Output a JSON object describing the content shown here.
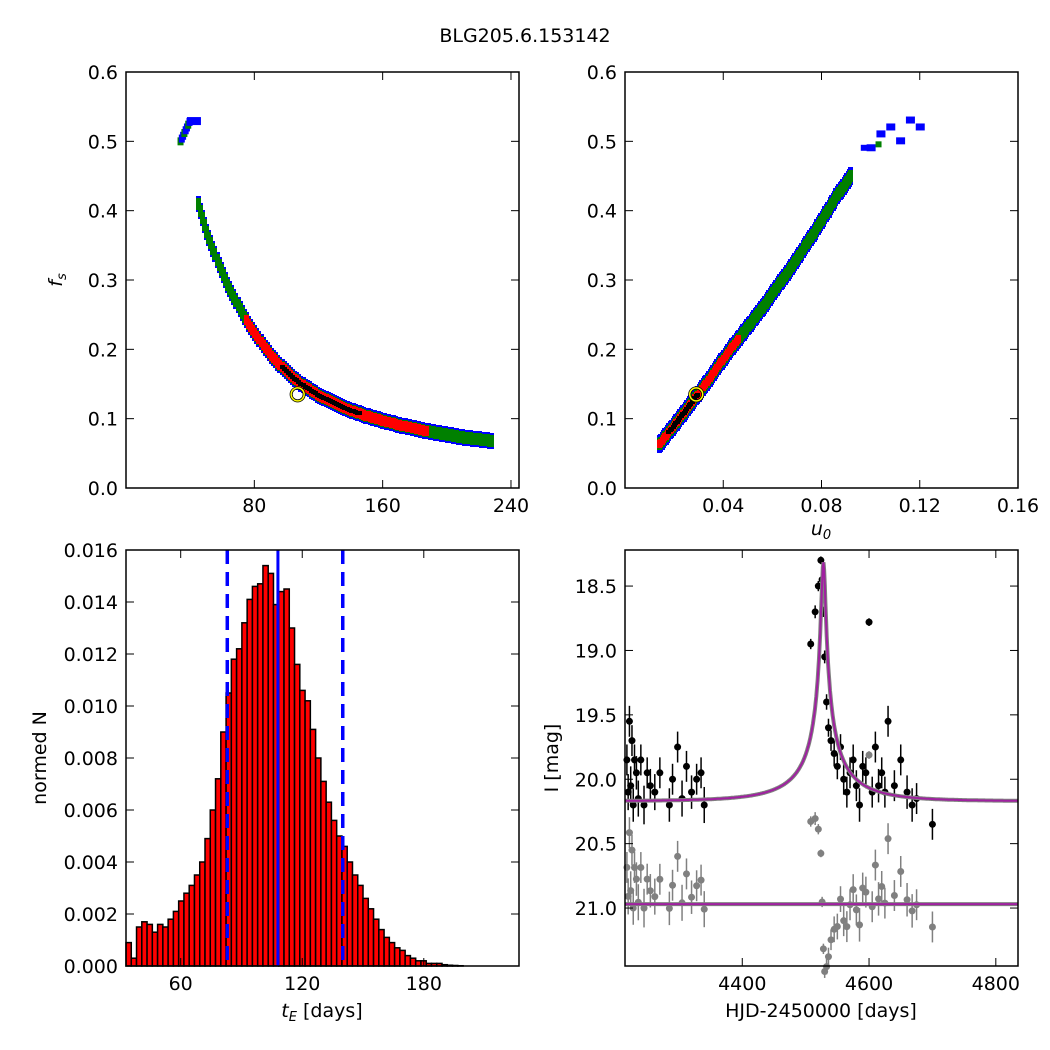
{
  "figure": {
    "title": "BLG205.6.153142"
  },
  "colors": {
    "blue": "#0000ff",
    "green": "#008000",
    "red": "#ff0000",
    "black": "#000000",
    "magenta": "#a020a0",
    "gray": "#808080",
    "marker": "#ffff00"
  },
  "chart_data": [
    {
      "type": "heatmap",
      "panel": "top-left",
      "xlabel": "",
      "ylabel": "f_s",
      "xlim": [
        0,
        245
      ],
      "ylim": [
        0.0,
        0.6
      ],
      "xticks": [
        "80",
        "160",
        "240"
      ],
      "xtick_values": [
        80,
        160,
        240
      ],
      "yticks": [
        "0.0",
        "0.1",
        "0.2",
        "0.3",
        "0.4",
        "0.5",
        "0.6"
      ],
      "ytick_values": [
        0.0,
        0.1,
        0.2,
        0.3,
        0.4,
        0.5,
        0.6
      ],
      "levels": [
        "black",
        "red",
        "green",
        "blue"
      ],
      "curve_tE": [
        34,
        40,
        45,
        50,
        55,
        60,
        65,
        70,
        75,
        80,
        85,
        90,
        95,
        100,
        105,
        110,
        115,
        120,
        130,
        140,
        150,
        160,
        170,
        180,
        190,
        200,
        210,
        220,
        228
      ],
      "curve_fs": [
        0.53,
        0.5,
        0.41,
        0.37,
        0.34,
        0.31,
        0.285,
        0.263,
        0.242,
        0.224,
        0.208,
        0.193,
        0.18,
        0.168,
        0.158,
        0.149,
        0.141,
        0.134,
        0.122,
        0.112,
        0.104,
        0.097,
        0.091,
        0.086,
        0.081,
        0.077,
        0.073,
        0.07,
        0.068
      ],
      "best_fit": {
        "x": 107,
        "y": 0.135
      }
    },
    {
      "type": "heatmap",
      "panel": "top-right",
      "xlabel": "u_0",
      "ylabel": "",
      "xlim": [
        0.0,
        0.16
      ],
      "ylim": [
        0.0,
        0.6
      ],
      "xticks": [
        "0.04",
        "0.08",
        "0.12",
        "0.16"
      ],
      "xtick_values": [
        0.04,
        0.08,
        0.12,
        0.16
      ],
      "yticks": [
        "0.0",
        "0.1",
        "0.2",
        "0.3",
        "0.4",
        "0.5",
        "0.6"
      ],
      "ytick_values": [
        0.0,
        0.1,
        0.2,
        0.3,
        0.4,
        0.5,
        0.6
      ],
      "curve_u0": [
        0.014,
        0.02,
        0.026,
        0.032,
        0.038,
        0.044,
        0.05,
        0.056,
        0.062,
        0.068,
        0.074,
        0.08,
        0.086,
        0.092
      ],
      "curve_fs": [
        0.063,
        0.09,
        0.118,
        0.146,
        0.176,
        0.205,
        0.232,
        0.26,
        0.29,
        0.32,
        0.352,
        0.385,
        0.42,
        0.45
      ],
      "outliers_u0": [
        0.1,
        0.104,
        0.108,
        0.112,
        0.116,
        0.12
      ],
      "outliers_fs": [
        0.49,
        0.51,
        0.52,
        0.5,
        0.53,
        0.52
      ],
      "best_fit": {
        "x": 0.029,
        "y": 0.135
      }
    },
    {
      "type": "bar",
      "panel": "bottom-left",
      "xlabel": "t_E [days]",
      "ylabel": "normed N",
      "xlim": [
        33,
        227
      ],
      "ylim": [
        0.0,
        0.016
      ],
      "xticks": [
        "60",
        "120",
        "180"
      ],
      "xtick_values": [
        60,
        120,
        180
      ],
      "yticks": [
        "0.000",
        "0.002",
        "0.004",
        "0.006",
        "0.008",
        "0.010",
        "0.012",
        "0.014",
        "0.016"
      ],
      "ytick_values": [
        0.0,
        0.002,
        0.004,
        0.006,
        0.008,
        0.01,
        0.012,
        0.014,
        0.016
      ],
      "bin_start": 33,
      "bin_width": 2.6,
      "values": [
        0.0009,
        0.0003,
        0.0015,
        0.0017,
        0.0016,
        0.0013,
        0.0016,
        0.0015,
        0.0018,
        0.0021,
        0.0025,
        0.0028,
        0.0031,
        0.0035,
        0.004,
        0.0049,
        0.006,
        0.0072,
        0.009,
        0.0105,
        0.0118,
        0.0122,
        0.0132,
        0.0141,
        0.0146,
        0.0147,
        0.0154,
        0.0151,
        0.0139,
        0.0144,
        0.0145,
        0.013,
        0.0116,
        0.0106,
        0.0102,
        0.0091,
        0.008,
        0.0071,
        0.0063,
        0.0056,
        0.005,
        0.0046,
        0.004,
        0.0035,
        0.0031,
        0.0026,
        0.0022,
        0.0018,
        0.0014,
        0.0011,
        0.0009,
        0.0007,
        0.0006,
        0.0004,
        0.0003,
        0.0002,
        0.0002,
        0.0001,
        0.0001,
        0.0001,
        5e-05,
        3e-05,
        2e-05,
        1e-05,
        0.0,
        0.0,
        0.0,
        0.0,
        0.0,
        0.0,
        0.0,
        0.0,
        0.0,
        0.0
      ],
      "median_line": 108,
      "interval_lines": [
        83,
        140
      ]
    },
    {
      "type": "scatter",
      "panel": "bottom-right",
      "xlabel": "HJD-2450000 [days]",
      "ylabel": "I [mag]",
      "xlim": [
        4215,
        4835
      ],
      "ylim": [
        21.45,
        18.22
      ],
      "xticks": [
        "4400",
        "4600",
        "4800"
      ],
      "xtick_values": [
        4400,
        4600,
        4800
      ],
      "yticks": [
        "18.5",
        "19.0",
        "19.5",
        "20.0",
        "20.5",
        "21.0"
      ],
      "ytick_values": [
        18.5,
        19.0,
        19.5,
        20.0,
        20.5,
        21.0
      ],
      "model": {
        "t0": 4528,
        "u0": 0.029,
        "tE": 108,
        "fs": 0.135,
        "base_mag": 20.17
      },
      "residual_base": 20.97,
      "data_t": [
        4218,
        4220,
        4222,
        4224,
        4226,
        4228,
        4230,
        4233,
        4236,
        4240,
        4245,
        4250,
        4255,
        4262,
        4270,
        4285,
        4290,
        4298,
        4305,
        4312,
        4320,
        4328,
        4335,
        4340,
        4508,
        4515,
        4520,
        4524,
        4526,
        4528,
        4530,
        4533,
        4536,
        4540,
        4545,
        4550,
        4555,
        4560,
        4565,
        4570,
        4575,
        4580,
        4585,
        4590,
        4595,
        4600,
        4605,
        4610,
        4615,
        4620,
        4625,
        4630,
        4640,
        4650,
        4660,
        4668,
        4675,
        4700
      ],
      "data_mag": [
        19.85,
        20.1,
        19.55,
        20.05,
        19.7,
        20.2,
        19.85,
        19.95,
        20.15,
        19.85,
        20.2,
        19.95,
        20.05,
        20.1,
        19.95,
        20.2,
        20.0,
        19.75,
        20.15,
        19.9,
        20.1,
        20.0,
        19.95,
        20.2,
        18.95,
        18.7,
        18.5,
        18.3,
        18.45,
        18.7,
        19.05,
        19.4,
        19.6,
        19.7,
        19.8,
        19.9,
        19.75,
        20.0,
        20.1,
        19.95,
        19.85,
        20.05,
        20.2,
        19.9,
        19.95,
        18.78,
        20.1,
        19.75,
        20.05,
        19.95,
        20.1,
        19.55,
        20.05,
        19.85,
        20.1,
        20.2,
        20.15,
        20.35
      ],
      "data_err": [
        0.12,
        0.14,
        0.12,
        0.15,
        0.12,
        0.13,
        0.12,
        0.13,
        0.14,
        0.12,
        0.15,
        0.12,
        0.13,
        0.14,
        0.12,
        0.13,
        0.12,
        0.12,
        0.14,
        0.12,
        0.13,
        0.12,
        0.12,
        0.14,
        0.04,
        0.05,
        0.04,
        0.03,
        0.04,
        0.04,
        0.05,
        0.06,
        0.07,
        0.08,
        0.1,
        0.1,
        0.1,
        0.12,
        0.12,
        0.12,
        0.12,
        0.12,
        0.13,
        0.12,
        0.12,
        0.03,
        0.12,
        0.12,
        0.13,
        0.12,
        0.12,
        0.12,
        0.12,
        0.12,
        0.13,
        0.13,
        0.12,
        0.12
      ]
    }
  ]
}
